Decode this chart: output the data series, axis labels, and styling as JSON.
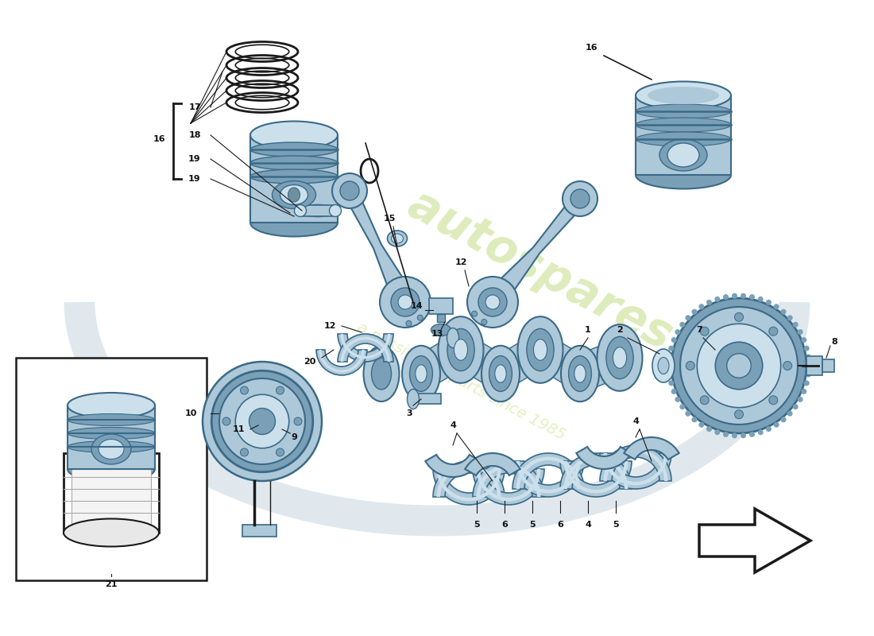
{
  "bg_color": "#ffffff",
  "mc": "#adc8d8",
  "dc": "#7aa0b8",
  "lc": "#cce0ec",
  "ec": "#3a6a88",
  "lnc": "#1a1a1a",
  "lbc": "#111111",
  "wm1_color": "#c8e090",
  "wm2_color": "#d0e898",
  "figsize": [
    11.0,
    8.0
  ],
  "dpi": 100
}
